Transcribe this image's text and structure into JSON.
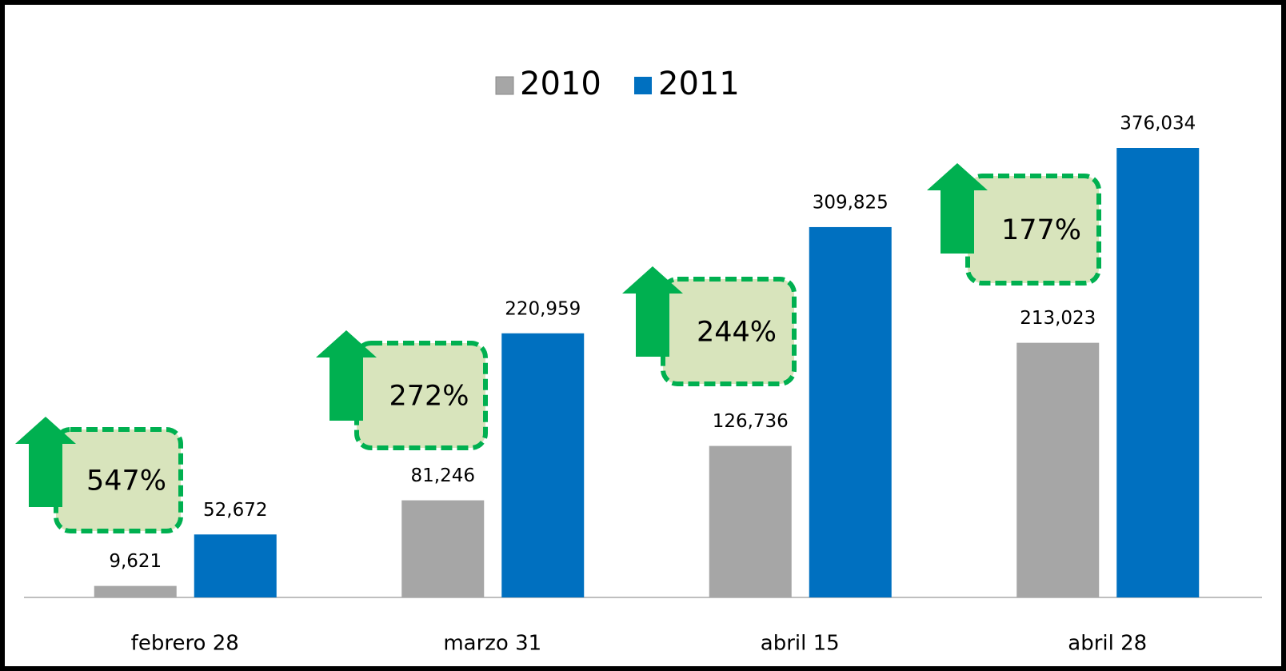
{
  "chart_data": {
    "type": "bar",
    "categories": [
      "febrero 28",
      "marzo 31",
      "abril 15",
      "abril 28"
    ],
    "series": [
      {
        "name": "2010",
        "color": "#a6a6a6",
        "values": [
          9621,
          81246,
          126736,
          213023
        ],
        "value_labels": [
          "9,621",
          "81,246",
          "126,736",
          "213,023"
        ]
      },
      {
        "name": "2011",
        "color": "#0070c0",
        "values": [
          52672,
          220959,
          309825,
          376034
        ],
        "value_labels": [
          "52,672",
          "220,959",
          "309,825",
          "376,034"
        ]
      }
    ],
    "annotations": [
      "547%",
      "272%",
      "244%",
      "177%"
    ]
  }
}
